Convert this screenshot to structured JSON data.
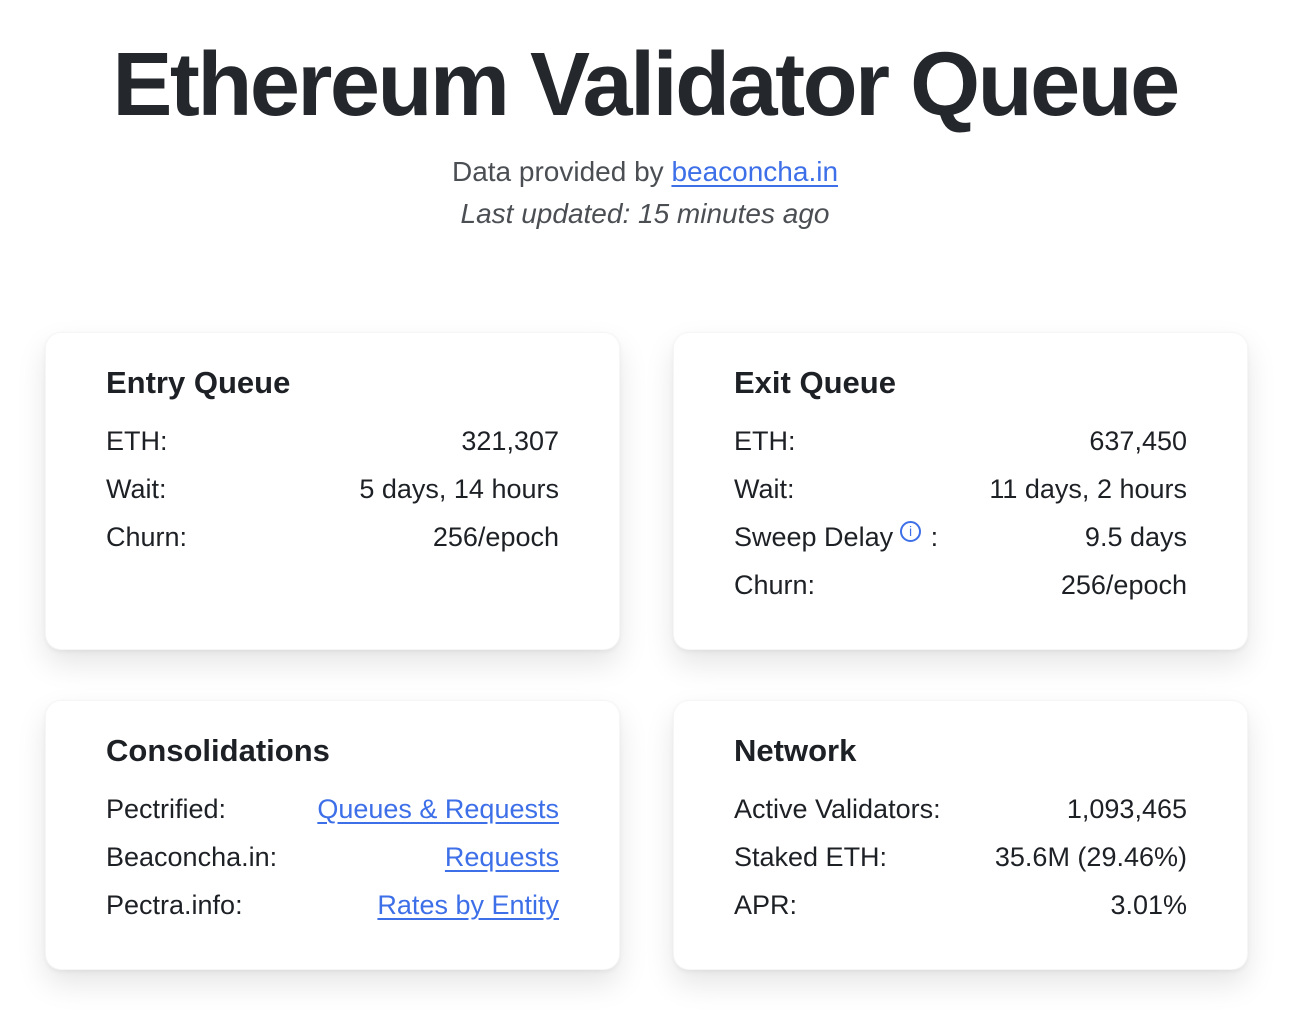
{
  "page": {
    "title": "Ethereum Validator Queue",
    "subtitle_prefix": "Data provided by ",
    "subtitle_link": "beaconcha.in",
    "last_updated": "Last updated: 15 minutes ago"
  },
  "colors": {
    "link_blue": "#3d6fe8",
    "title_text": "#24272b",
    "body_text": "#1d2025",
    "muted_text": "#4b4f54",
    "card_background": "#ffffff",
    "page_background": "#ffffff"
  },
  "icons": {
    "info": "i"
  },
  "cards": {
    "entry_queue": {
      "title": "Entry Queue",
      "rows": [
        {
          "label": "ETH:",
          "value": "321,307"
        },
        {
          "label": "Wait:",
          "value": "5 days, 14 hours"
        },
        {
          "label": "Churn:",
          "value": "256/epoch"
        }
      ]
    },
    "exit_queue": {
      "title": "Exit Queue",
      "rows": [
        {
          "label": "ETH:",
          "value": "637,450"
        },
        {
          "label": "Wait:",
          "value": "11 days, 2 hours"
        },
        {
          "label": "Sweep Delay",
          "has_info_icon": true,
          "label_suffix": ":",
          "value": "9.5 days"
        },
        {
          "label": "Churn:",
          "value": "256/epoch"
        }
      ]
    },
    "consolidations": {
      "title": "Consolidations",
      "rows": [
        {
          "label": "Pectrified:",
          "link": "Queues & Requests"
        },
        {
          "label": "Beaconcha.in:",
          "link": "Requests"
        },
        {
          "label": "Pectra.info:",
          "link": "Rates by Entity"
        }
      ]
    },
    "network": {
      "title": "Network",
      "rows": [
        {
          "label": "Active Validators:",
          "value": "1,093,465"
        },
        {
          "label": "Staked ETH:",
          "value": "35.6M (29.46%)"
        },
        {
          "label": "APR:",
          "value": "3.01%"
        }
      ]
    }
  }
}
